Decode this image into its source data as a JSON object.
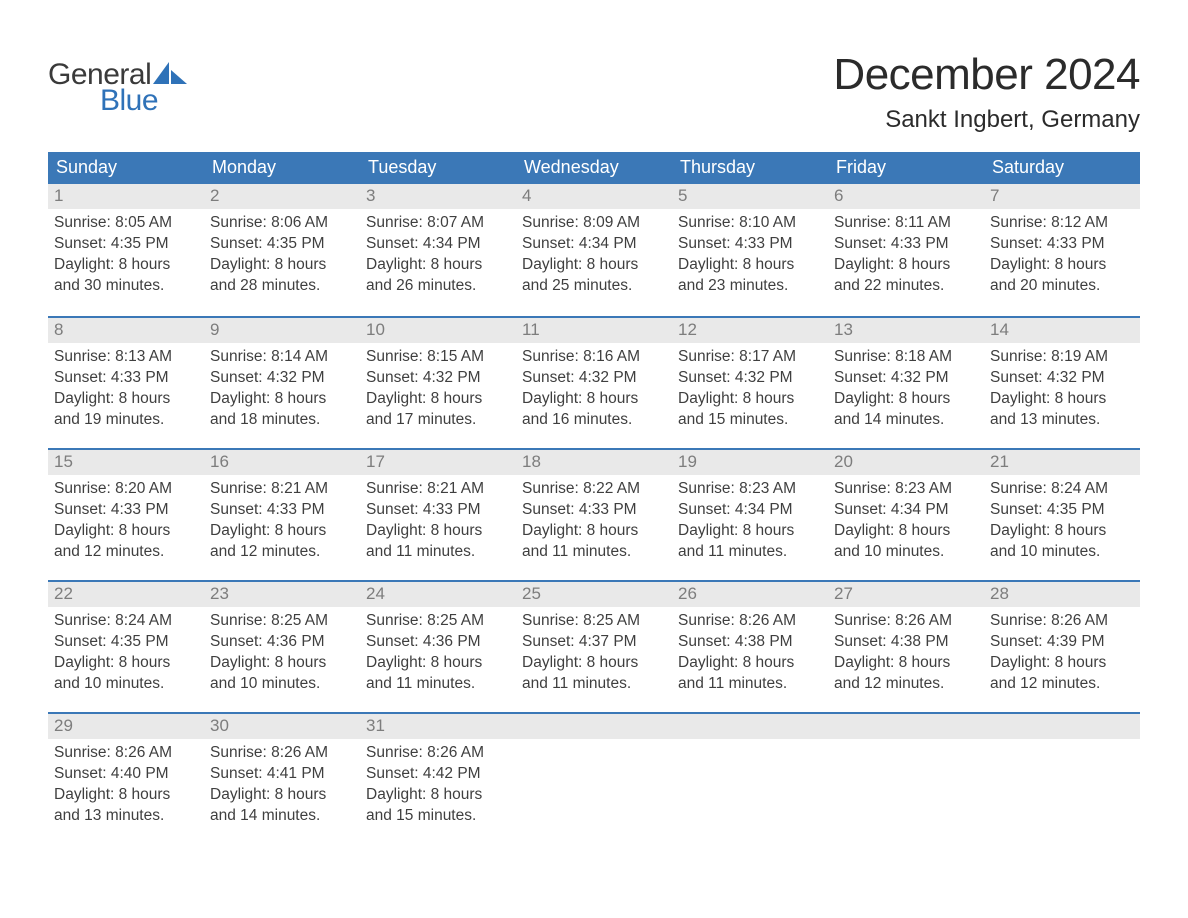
{
  "logo": {
    "word1": "General",
    "word2": "Blue"
  },
  "title": "December 2024",
  "location": "Sankt Ingbert, Germany",
  "colors": {
    "header_bg": "#3b78b7",
    "header_text": "#ffffff",
    "daynum_bg": "#e9e9e9",
    "daynum_text": "#7d7d7d",
    "body_text": "#3f3f3f",
    "week_divider": "#3b78b7",
    "logo_blue": "#2f72b8",
    "logo_dark": "#3a3a3a"
  },
  "typography": {
    "title_fontsize": 44,
    "location_fontsize": 24,
    "dow_fontsize": 18,
    "body_fontsize": 15.5,
    "daynum_fontsize": 17
  },
  "days_of_week": [
    "Sunday",
    "Monday",
    "Tuesday",
    "Wednesday",
    "Thursday",
    "Friday",
    "Saturday"
  ],
  "weeks": [
    [
      {
        "num": "1",
        "sunrise": "Sunrise: 8:05 AM",
        "sunset": "Sunset: 4:35 PM",
        "dl1": "Daylight: 8 hours",
        "dl2": "and 30 minutes."
      },
      {
        "num": "2",
        "sunrise": "Sunrise: 8:06 AM",
        "sunset": "Sunset: 4:35 PM",
        "dl1": "Daylight: 8 hours",
        "dl2": "and 28 minutes."
      },
      {
        "num": "3",
        "sunrise": "Sunrise: 8:07 AM",
        "sunset": "Sunset: 4:34 PM",
        "dl1": "Daylight: 8 hours",
        "dl2": "and 26 minutes."
      },
      {
        "num": "4",
        "sunrise": "Sunrise: 8:09 AM",
        "sunset": "Sunset: 4:34 PM",
        "dl1": "Daylight: 8 hours",
        "dl2": "and 25 minutes."
      },
      {
        "num": "5",
        "sunrise": "Sunrise: 8:10 AM",
        "sunset": "Sunset: 4:33 PM",
        "dl1": "Daylight: 8 hours",
        "dl2": "and 23 minutes."
      },
      {
        "num": "6",
        "sunrise": "Sunrise: 8:11 AM",
        "sunset": "Sunset: 4:33 PM",
        "dl1": "Daylight: 8 hours",
        "dl2": "and 22 minutes."
      },
      {
        "num": "7",
        "sunrise": "Sunrise: 8:12 AM",
        "sunset": "Sunset: 4:33 PM",
        "dl1": "Daylight: 8 hours",
        "dl2": "and 20 minutes."
      }
    ],
    [
      {
        "num": "8",
        "sunrise": "Sunrise: 8:13 AM",
        "sunset": "Sunset: 4:33 PM",
        "dl1": "Daylight: 8 hours",
        "dl2": "and 19 minutes."
      },
      {
        "num": "9",
        "sunrise": "Sunrise: 8:14 AM",
        "sunset": "Sunset: 4:32 PM",
        "dl1": "Daylight: 8 hours",
        "dl2": "and 18 minutes."
      },
      {
        "num": "10",
        "sunrise": "Sunrise: 8:15 AM",
        "sunset": "Sunset: 4:32 PM",
        "dl1": "Daylight: 8 hours",
        "dl2": "and 17 minutes."
      },
      {
        "num": "11",
        "sunrise": "Sunrise: 8:16 AM",
        "sunset": "Sunset: 4:32 PM",
        "dl1": "Daylight: 8 hours",
        "dl2": "and 16 minutes."
      },
      {
        "num": "12",
        "sunrise": "Sunrise: 8:17 AM",
        "sunset": "Sunset: 4:32 PM",
        "dl1": "Daylight: 8 hours",
        "dl2": "and 15 minutes."
      },
      {
        "num": "13",
        "sunrise": "Sunrise: 8:18 AM",
        "sunset": "Sunset: 4:32 PM",
        "dl1": "Daylight: 8 hours",
        "dl2": "and 14 minutes."
      },
      {
        "num": "14",
        "sunrise": "Sunrise: 8:19 AM",
        "sunset": "Sunset: 4:32 PM",
        "dl1": "Daylight: 8 hours",
        "dl2": "and 13 minutes."
      }
    ],
    [
      {
        "num": "15",
        "sunrise": "Sunrise: 8:20 AM",
        "sunset": "Sunset: 4:33 PM",
        "dl1": "Daylight: 8 hours",
        "dl2": "and 12 minutes."
      },
      {
        "num": "16",
        "sunrise": "Sunrise: 8:21 AM",
        "sunset": "Sunset: 4:33 PM",
        "dl1": "Daylight: 8 hours",
        "dl2": "and 12 minutes."
      },
      {
        "num": "17",
        "sunrise": "Sunrise: 8:21 AM",
        "sunset": "Sunset: 4:33 PM",
        "dl1": "Daylight: 8 hours",
        "dl2": "and 11 minutes."
      },
      {
        "num": "18",
        "sunrise": "Sunrise: 8:22 AM",
        "sunset": "Sunset: 4:33 PM",
        "dl1": "Daylight: 8 hours",
        "dl2": "and 11 minutes."
      },
      {
        "num": "19",
        "sunrise": "Sunrise: 8:23 AM",
        "sunset": "Sunset: 4:34 PM",
        "dl1": "Daylight: 8 hours",
        "dl2": "and 11 minutes."
      },
      {
        "num": "20",
        "sunrise": "Sunrise: 8:23 AM",
        "sunset": "Sunset: 4:34 PM",
        "dl1": "Daylight: 8 hours",
        "dl2": "and 10 minutes."
      },
      {
        "num": "21",
        "sunrise": "Sunrise: 8:24 AM",
        "sunset": "Sunset: 4:35 PM",
        "dl1": "Daylight: 8 hours",
        "dl2": "and 10 minutes."
      }
    ],
    [
      {
        "num": "22",
        "sunrise": "Sunrise: 8:24 AM",
        "sunset": "Sunset: 4:35 PM",
        "dl1": "Daylight: 8 hours",
        "dl2": "and 10 minutes."
      },
      {
        "num": "23",
        "sunrise": "Sunrise: 8:25 AM",
        "sunset": "Sunset: 4:36 PM",
        "dl1": "Daylight: 8 hours",
        "dl2": "and 10 minutes."
      },
      {
        "num": "24",
        "sunrise": "Sunrise: 8:25 AM",
        "sunset": "Sunset: 4:36 PM",
        "dl1": "Daylight: 8 hours",
        "dl2": "and 11 minutes."
      },
      {
        "num": "25",
        "sunrise": "Sunrise: 8:25 AM",
        "sunset": "Sunset: 4:37 PM",
        "dl1": "Daylight: 8 hours",
        "dl2": "and 11 minutes."
      },
      {
        "num": "26",
        "sunrise": "Sunrise: 8:26 AM",
        "sunset": "Sunset: 4:38 PM",
        "dl1": "Daylight: 8 hours",
        "dl2": "and 11 minutes."
      },
      {
        "num": "27",
        "sunrise": "Sunrise: 8:26 AM",
        "sunset": "Sunset: 4:38 PM",
        "dl1": "Daylight: 8 hours",
        "dl2": "and 12 minutes."
      },
      {
        "num": "28",
        "sunrise": "Sunrise: 8:26 AM",
        "sunset": "Sunset: 4:39 PM",
        "dl1": "Daylight: 8 hours",
        "dl2": "and 12 minutes."
      }
    ],
    [
      {
        "num": "29",
        "sunrise": "Sunrise: 8:26 AM",
        "sunset": "Sunset: 4:40 PM",
        "dl1": "Daylight: 8 hours",
        "dl2": "and 13 minutes."
      },
      {
        "num": "30",
        "sunrise": "Sunrise: 8:26 AM",
        "sunset": "Sunset: 4:41 PM",
        "dl1": "Daylight: 8 hours",
        "dl2": "and 14 minutes."
      },
      {
        "num": "31",
        "sunrise": "Sunrise: 8:26 AM",
        "sunset": "Sunset: 4:42 PM",
        "dl1": "Daylight: 8 hours",
        "dl2": "and 15 minutes."
      },
      {
        "empty": true
      },
      {
        "empty": true
      },
      {
        "empty": true
      },
      {
        "empty": true
      }
    ]
  ]
}
